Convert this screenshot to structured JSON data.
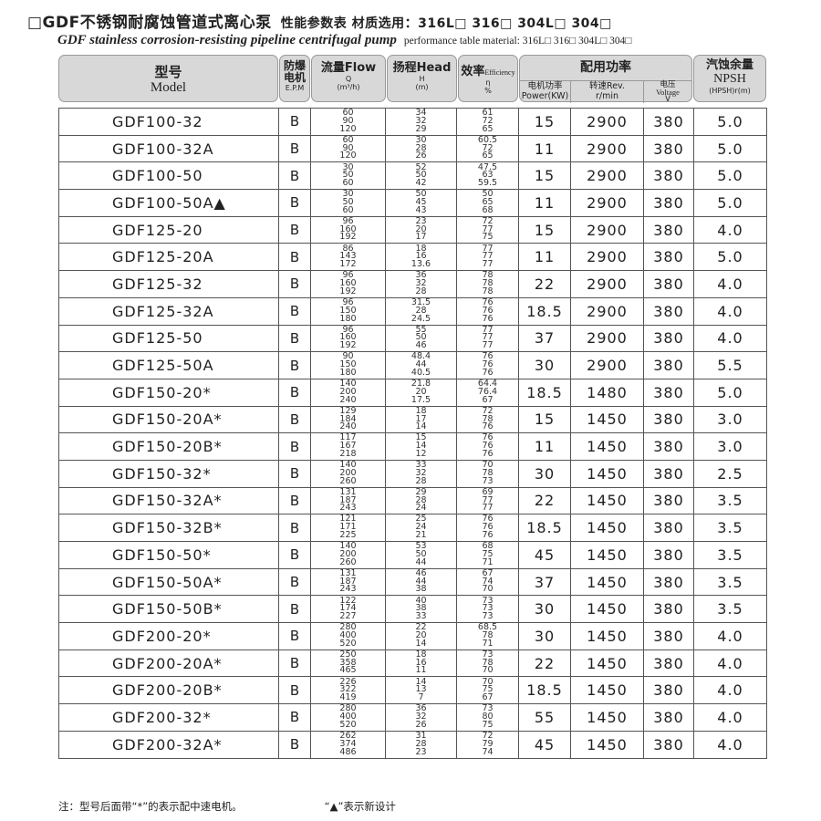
{
  "title": {
    "cn": "□GDF不锈钢耐腐蚀管道式离心泵",
    "cn_sub": "性能参数表  材质选用：316L□ 316□ 304L□ 304□",
    "en": "GDF stainless corrosion-resisting pipeline centrifugal pump",
    "en_sub": "performance table  material: 316L□ 316□ 304L□ 304□"
  },
  "header": {
    "model_cn": "型号",
    "model_en": "Model",
    "epm_cn": "防爆电机",
    "epm_en": "E.P.M",
    "flow": "流量Flow",
    "flow_sym": "Q",
    "flow_unit": "(m³/h)",
    "head": "扬程Head",
    "head_sym": "H",
    "head_unit": "(m)",
    "eff": "效率",
    "eff_en": "Efficiency",
    "eff_sym": "η",
    "eff_unit": "%",
    "power_group": "配用功率",
    "power_cn": "电机功率",
    "power_en": "Power(KW)",
    "rev_cn": "转速Rev.",
    "rev_unit": "r/min",
    "volt_cn": "电压",
    "volt_en": "Voltage",
    "volt_unit": "V",
    "npsh_cn": "汽蚀余量",
    "npsh_en": "NPSH",
    "npsh_unit": "(HPSH)r(m)"
  },
  "rows": [
    {
      "model": "GDF100-32",
      "epm": "B",
      "flow": [
        "60",
        "90",
        "120"
      ],
      "head": [
        "34",
        "32",
        "29"
      ],
      "eff": [
        "61",
        "72",
        "65"
      ],
      "power": "15",
      "rev": "2900",
      "volt": "380",
      "npsh": "5.0"
    },
    {
      "model": "GDF100-32A",
      "epm": "B",
      "flow": [
        "60",
        "90",
        "120"
      ],
      "head": [
        "30",
        "28",
        "26"
      ],
      "eff": [
        "60.5",
        "72",
        "65"
      ],
      "power": "11",
      "rev": "2900",
      "volt": "380",
      "npsh": "5.0"
    },
    {
      "model": "GDF100-50",
      "epm": "B",
      "flow": [
        "30",
        "50",
        "60"
      ],
      "head": [
        "52",
        "50",
        "42"
      ],
      "eff": [
        "47.5",
        "63",
        "59.5"
      ],
      "power": "15",
      "rev": "2900",
      "volt": "380",
      "npsh": "5.0"
    },
    {
      "model": "GDF100-50A▲",
      "epm": "B",
      "flow": [
        "30",
        "50",
        "60"
      ],
      "head": [
        "50",
        "45",
        "43"
      ],
      "eff": [
        "50",
        "65",
        "68"
      ],
      "power": "11",
      "rev": "2900",
      "volt": "380",
      "npsh": "5.0"
    },
    {
      "model": "GDF125-20",
      "epm": "B",
      "flow": [
        "96",
        "160",
        "192"
      ],
      "head": [
        "23",
        "20",
        "17"
      ],
      "eff": [
        "72",
        "77",
        "75"
      ],
      "power": "15",
      "rev": "2900",
      "volt": "380",
      "npsh": "4.0"
    },
    {
      "model": "GDF125-20A",
      "epm": "B",
      "flow": [
        "86",
        "143",
        "172"
      ],
      "head": [
        "18",
        "16",
        "13.6"
      ],
      "eff": [
        "77",
        "77",
        "77"
      ],
      "power": "11",
      "rev": "2900",
      "volt": "380",
      "npsh": "5.0"
    },
    {
      "model": "GDF125-32",
      "epm": "B",
      "flow": [
        "96",
        "160",
        "192"
      ],
      "head": [
        "36",
        "32",
        "28"
      ],
      "eff": [
        "78",
        "78",
        "78"
      ],
      "power": "22",
      "rev": "2900",
      "volt": "380",
      "npsh": "4.0"
    },
    {
      "model": "GDF125-32A",
      "epm": "B",
      "flow": [
        "96",
        "150",
        "180"
      ],
      "head": [
        "31.5",
        "28",
        "24.5"
      ],
      "eff": [
        "76",
        "76",
        "76"
      ],
      "power": "18.5",
      "rev": "2900",
      "volt": "380",
      "npsh": "4.0"
    },
    {
      "model": "GDF125-50",
      "epm": "B",
      "flow": [
        "96",
        "160",
        "192"
      ],
      "head": [
        "55",
        "50",
        "46"
      ],
      "eff": [
        "77",
        "77",
        "77"
      ],
      "power": "37",
      "rev": "2900",
      "volt": "380",
      "npsh": "4.0"
    },
    {
      "model": "GDF125-50A",
      "epm": "B",
      "flow": [
        "90",
        "150",
        "180"
      ],
      "head": [
        "48.4",
        "44",
        "40.5"
      ],
      "eff": [
        "76",
        "76",
        "76"
      ],
      "power": "30",
      "rev": "2900",
      "volt": "380",
      "npsh": "5.5"
    },
    {
      "model": "GDF150-20*",
      "epm": "B",
      "flow": [
        "140",
        "200",
        "240"
      ],
      "head": [
        "21.8",
        "20",
        "17.5"
      ],
      "eff": [
        "64.4",
        "76.4",
        "67"
      ],
      "power": "18.5",
      "rev": "1480",
      "volt": "380",
      "npsh": "5.0"
    },
    {
      "model": "GDF150-20A*",
      "epm": "B",
      "flow": [
        "129",
        "184",
        "240"
      ],
      "head": [
        "18",
        "17",
        "14"
      ],
      "eff": [
        "72",
        "78",
        "76"
      ],
      "power": "15",
      "rev": "1450",
      "volt": "380",
      "npsh": "3.0"
    },
    {
      "model": "GDF150-20B*",
      "epm": "B",
      "flow": [
        "117",
        "167",
        "218"
      ],
      "head": [
        "15",
        "14",
        "12"
      ],
      "eff": [
        "76",
        "76",
        "76"
      ],
      "power": "11",
      "rev": "1450",
      "volt": "380",
      "npsh": "3.0"
    },
    {
      "model": "GDF150-32*",
      "epm": "B",
      "flow": [
        "140",
        "200",
        "260"
      ],
      "head": [
        "33",
        "32",
        "28"
      ],
      "eff": [
        "70",
        "78",
        "73"
      ],
      "power": "30",
      "rev": "1450",
      "volt": "380",
      "npsh": "2.5"
    },
    {
      "model": "GDF150-32A*",
      "epm": "B",
      "flow": [
        "131",
        "187",
        "243"
      ],
      "head": [
        "29",
        "28",
        "24"
      ],
      "eff": [
        "69",
        "77",
        "77"
      ],
      "power": "22",
      "rev": "1450",
      "volt": "380",
      "npsh": "3.5"
    },
    {
      "model": "GDF150-32B*",
      "epm": "B",
      "flow": [
        "121",
        "171",
        "225"
      ],
      "head": [
        "25",
        "24",
        "21"
      ],
      "eff": [
        "76",
        "76",
        "76"
      ],
      "power": "18.5",
      "rev": "1450",
      "volt": "380",
      "npsh": "3.5"
    },
    {
      "model": "GDF150-50*",
      "epm": "B",
      "flow": [
        "140",
        "200",
        "260"
      ],
      "head": [
        "53",
        "50",
        "44"
      ],
      "eff": [
        "68",
        "75",
        "71"
      ],
      "power": "45",
      "rev": "1450",
      "volt": "380",
      "npsh": "3.5"
    },
    {
      "model": "GDF150-50A*",
      "epm": "B",
      "flow": [
        "131",
        "187",
        "243"
      ],
      "head": [
        "46",
        "44",
        "38"
      ],
      "eff": [
        "67",
        "74",
        "70"
      ],
      "power": "37",
      "rev": "1450",
      "volt": "380",
      "npsh": "3.5"
    },
    {
      "model": "GDF150-50B*",
      "epm": "B",
      "flow": [
        "122",
        "174",
        "227"
      ],
      "head": [
        "40",
        "38",
        "33"
      ],
      "eff": [
        "73",
        "73",
        "73"
      ],
      "power": "30",
      "rev": "1450",
      "volt": "380",
      "npsh": "3.5"
    },
    {
      "model": "GDF200-20*",
      "epm": "B",
      "flow": [
        "280",
        "400",
        "520"
      ],
      "head": [
        "22",
        "20",
        "14"
      ],
      "eff": [
        "68.5",
        "78",
        "71"
      ],
      "power": "30",
      "rev": "1450",
      "volt": "380",
      "npsh": "4.0"
    },
    {
      "model": "GDF200-20A*",
      "epm": "B",
      "flow": [
        "250",
        "358",
        "465"
      ],
      "head": [
        "18",
        "16",
        "11"
      ],
      "eff": [
        "73",
        "78",
        "70"
      ],
      "power": "22",
      "rev": "1450",
      "volt": "380",
      "npsh": "4.0"
    },
    {
      "model": "GDF200-20B*",
      "epm": "B",
      "flow": [
        "226",
        "322",
        "419"
      ],
      "head": [
        "14",
        "13",
        "7"
      ],
      "eff": [
        "70",
        "75",
        "67"
      ],
      "power": "18.5",
      "rev": "1450",
      "volt": "380",
      "npsh": "4.0"
    },
    {
      "model": "GDF200-32*",
      "epm": "B",
      "flow": [
        "280",
        "400",
        "520"
      ],
      "head": [
        "36",
        "32",
        "26"
      ],
      "eff": [
        "73",
        "80",
        "75"
      ],
      "power": "55",
      "rev": "1450",
      "volt": "380",
      "npsh": "4.0"
    },
    {
      "model": "GDF200-32A*",
      "epm": "B",
      "flow": [
        "262",
        "374",
        "486"
      ],
      "head": [
        "31",
        "28",
        "23"
      ],
      "eff": [
        "72",
        "79",
        "74"
      ],
      "power": "45",
      "rev": "1450",
      "volt": "380",
      "npsh": "4.0"
    }
  ],
  "footer": {
    "note1": "注：型号后面带“*”的表示配中速电机。",
    "note2": "“▲”表示新设计"
  }
}
